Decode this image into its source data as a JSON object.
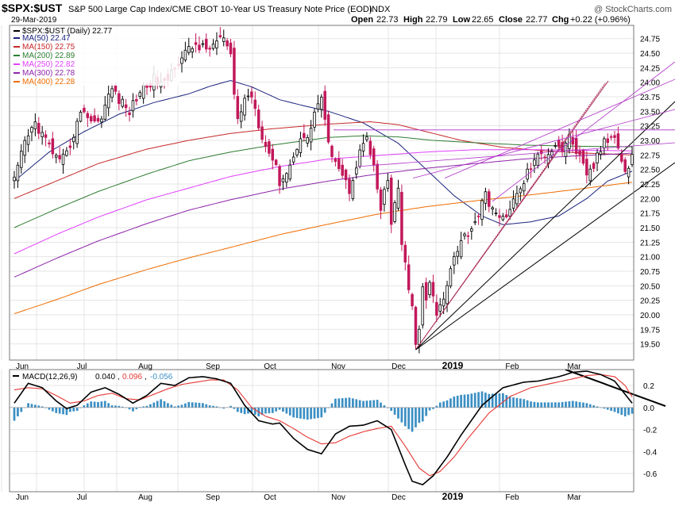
{
  "header": {
    "symbol": "$SPX:$UST",
    "description": "S&P 500 Large Cap Index/CME CBOT 10-Year US Treasury Note Price (EOD)",
    "exchange": "INDX",
    "watermark": "@ StockCharts.com",
    "date": "29-Mar-2019",
    "open_label": "Open",
    "open": "22.73",
    "high_label": "High",
    "high": "22.79",
    "low_label": "Low",
    "low": "22.65",
    "close_label": "Close",
    "close": "22.77",
    "chg_label": "Chg",
    "chg": "+0.22 (+0.96%)"
  },
  "legend": {
    "main": {
      "label": "$SPX:$UST (Daily) 22.77",
      "color": "#000000"
    },
    "ma": [
      {
        "label": "MA(50) 22.47",
        "color": "#1a237e"
      },
      {
        "label": "MA(150) 22.75",
        "color": "#c62828"
      },
      {
        "label": "MA(200) 22.89",
        "color": "#2e7d32"
      },
      {
        "label": "MA(250) 22.82",
        "color": "#e040fb"
      },
      {
        "label": "MA(300) 22.78",
        "color": "#8e24aa"
      },
      {
        "label": "MA(400) 22.28",
        "color": "#ef6c00"
      }
    ]
  },
  "macd_legend": {
    "prefix": "MACD(12,26,9)",
    "macd": "0.040",
    "signal": "0.096",
    "hist": "-0.056"
  },
  "colors": {
    "up": "#000000",
    "down": "#c2185b",
    "hist": "#3b8fc4",
    "macd_line": "#000000",
    "signal_line": "#e53935",
    "grid": "#e4e4e4",
    "trend": "#000000",
    "fan": "#b030c8",
    "mag": "#aa2a5a"
  },
  "chart_data": [
    {
      "type": "candlestick",
      "title": "$SPX:$UST S&P 500 Large Cap Index/CME CBOT 10-Year US Treasury Note Price (EOD)",
      "x_labels": [
        "Jun",
        "Jul",
        "Aug",
        "Sep",
        "Oct",
        "Nov",
        "Dec",
        "2019",
        "Feb",
        "Mar"
      ],
      "y_ticks": [
        "19.50",
        "19.75",
        "20.00",
        "20.25",
        "20.50",
        "20.75",
        "21.00",
        "21.25",
        "21.50",
        "21.75",
        "22.00",
        "22.25",
        "22.50",
        "22.75",
        "23.00",
        "23.25",
        "23.50",
        "23.75",
        "24.00",
        "24.25",
        "24.50",
        "24.75"
      ],
      "ylim": [
        19.25,
        24.95
      ],
      "keypoints_close": [
        [
          0,
          22.3
        ],
        [
          3,
          22.95
        ],
        [
          6,
          23.3
        ],
        [
          8,
          23.1
        ],
        [
          10,
          22.9
        ],
        [
          13,
          22.6
        ],
        [
          15,
          22.75
        ],
        [
          18,
          23.3
        ],
        [
          20,
          23.55
        ],
        [
          21,
          23.4
        ],
        [
          24,
          23.3
        ],
        [
          26,
          23.6
        ],
        [
          28,
          23.9
        ],
        [
          30,
          23.7
        ],
        [
          33,
          23.5
        ],
        [
          36,
          23.85
        ],
        [
          40,
          24.05
        ],
        [
          43,
          23.95
        ],
        [
          46,
          24.3
        ],
        [
          49,
          24.5
        ],
        [
          52,
          24.65
        ],
        [
          55,
          24.55
        ],
        [
          58,
          24.7
        ],
        [
          60,
          24.75
        ],
        [
          62,
          24.4
        ],
        [
          63,
          23.8
        ],
        [
          64,
          23.35
        ],
        [
          66,
          23.7
        ],
        [
          68,
          23.8
        ],
        [
          70,
          23.3
        ],
        [
          72,
          22.9
        ],
        [
          74,
          22.7
        ],
        [
          76,
          22.3
        ],
        [
          78,
          22.45
        ],
        [
          80,
          22.7
        ],
        [
          82,
          23.1
        ],
        [
          84,
          23.0
        ],
        [
          86,
          23.5
        ],
        [
          88,
          23.75
        ],
        [
          89,
          23.3
        ],
        [
          90,
          22.9
        ],
        [
          92,
          22.7
        ],
        [
          94,
          22.4
        ],
        [
          96,
          22.15
        ],
        [
          98,
          22.6
        ],
        [
          100,
          22.95
        ],
        [
          101,
          23.05
        ],
        [
          102,
          22.7
        ],
        [
          103,
          22.5
        ],
        [
          105,
          21.8
        ],
        [
          106,
          22.1
        ],
        [
          107,
          22.3
        ],
        [
          108,
          21.6
        ],
        [
          109,
          21.9
        ],
        [
          110,
          22.1
        ],
        [
          111,
          21.2
        ],
        [
          113,
          20.5
        ],
        [
          114,
          20.1
        ],
        [
          115,
          19.45
        ],
        [
          116,
          19.75
        ],
        [
          117,
          20.5
        ],
        [
          118,
          20.2
        ],
        [
          119,
          20.55
        ],
        [
          121,
          20.0
        ],
        [
          123,
          20.3
        ],
        [
          125,
          20.85
        ],
        [
          127,
          21.15
        ],
        [
          129,
          21.35
        ],
        [
          131,
          21.5
        ],
        [
          133,
          21.75
        ],
        [
          135,
          22.05
        ],
        [
          137,
          21.85
        ],
        [
          139,
          21.6
        ],
        [
          141,
          21.75
        ],
        [
          143,
          21.95
        ],
        [
          145,
          22.15
        ],
        [
          147,
          22.45
        ],
        [
          149,
          22.65
        ],
        [
          151,
          22.75
        ],
        [
          153,
          22.8
        ],
        [
          155,
          22.95
        ],
        [
          157,
          22.85
        ],
        [
          159,
          23.05
        ],
        [
          160,
          22.95
        ],
        [
          162,
          22.7
        ],
        [
          164,
          22.35
        ],
        [
          166,
          22.55
        ],
        [
          167,
          22.75
        ],
        [
          169,
          22.95
        ],
        [
          171,
          23.05
        ],
        [
          172,
          23.1
        ],
        [
          173,
          22.95
        ],
        [
          174,
          22.7
        ],
        [
          175,
          22.45
        ],
        [
          176,
          22.55
        ],
        [
          177,
          22.77
        ]
      ],
      "ma_keypoints": [
        {
          "name": "MA(50)",
          "color": "#1a237e",
          "points": [
            [
              0,
              22.3
            ],
            [
              10,
              22.8
            ],
            [
              20,
              23.15
            ],
            [
              30,
              23.45
            ],
            [
              40,
              23.65
            ],
            [
              50,
              23.8
            ],
            [
              56,
              23.93
            ],
            [
              62,
              24.03
            ],
            [
              68,
              23.92
            ],
            [
              76,
              23.7
            ],
            [
              84,
              23.58
            ],
            [
              90,
              23.5
            ],
            [
              100,
              23.3
            ],
            [
              110,
              22.95
            ],
            [
              118,
              22.5
            ],
            [
              126,
              22.05
            ],
            [
              134,
              21.7
            ],
            [
              140,
              21.55
            ],
            [
              148,
              21.6
            ],
            [
              156,
              21.7
            ],
            [
              164,
              22.0
            ],
            [
              170,
              22.3
            ],
            [
              177,
              22.47
            ]
          ]
        },
        {
          "name": "MA(150)",
          "color": "#c62828",
          "points": [
            [
              0,
              22.0
            ],
            [
              12,
              22.3
            ],
            [
              24,
              22.6
            ],
            [
              38,
              22.85
            ],
            [
              50,
              23.0
            ],
            [
              62,
              23.12
            ],
            [
              74,
              23.2
            ],
            [
              90,
              23.28
            ],
            [
              102,
              23.32
            ],
            [
              110,
              23.27
            ],
            [
              118,
              23.15
            ],
            [
              128,
              23.0
            ],
            [
              140,
              22.88
            ],
            [
              152,
              22.82
            ],
            [
              164,
              22.78
            ],
            [
              177,
              22.75
            ]
          ]
        },
        {
          "name": "MA(200)",
          "color": "#2e7d32",
          "points": [
            [
              0,
              21.5
            ],
            [
              12,
              21.82
            ],
            [
              24,
              22.12
            ],
            [
              38,
              22.42
            ],
            [
              50,
              22.65
            ],
            [
              62,
              22.8
            ],
            [
              74,
              22.92
            ],
            [
              90,
              23.05
            ],
            [
              100,
              23.08
            ],
            [
              110,
              23.06
            ],
            [
              120,
              23.0
            ],
            [
              132,
              22.96
            ],
            [
              146,
              22.92
            ],
            [
              160,
              22.9
            ],
            [
              177,
              22.89
            ]
          ]
        },
        {
          "name": "MA(250)",
          "color": "#e040fb",
          "points": [
            [
              0,
              21.05
            ],
            [
              12,
              21.38
            ],
            [
              24,
              21.68
            ],
            [
              38,
              21.98
            ],
            [
              50,
              22.18
            ],
            [
              62,
              22.38
            ],
            [
              76,
              22.55
            ],
            [
              90,
              22.68
            ],
            [
              104,
              22.74
            ],
            [
              118,
              22.8
            ],
            [
              132,
              22.84
            ],
            [
              148,
              22.84
            ],
            [
              164,
              22.83
            ],
            [
              177,
              22.82
            ]
          ]
        },
        {
          "name": "MA(300)",
          "color": "#8e24aa",
          "points": [
            [
              0,
              20.65
            ],
            [
              12,
              20.97
            ],
            [
              24,
              21.27
            ],
            [
              38,
              21.57
            ],
            [
              50,
              21.8
            ],
            [
              62,
              21.98
            ],
            [
              76,
              22.16
            ],
            [
              90,
              22.3
            ],
            [
              104,
              22.42
            ],
            [
              118,
              22.52
            ],
            [
              132,
              22.6
            ],
            [
              146,
              22.68
            ],
            [
              160,
              22.73
            ],
            [
              177,
              22.78
            ]
          ]
        },
        {
          "name": "MA(400)",
          "color": "#ef6c00",
          "points": [
            [
              0,
              20.02
            ],
            [
              12,
              20.26
            ],
            [
              24,
              20.52
            ],
            [
              38,
              20.78
            ],
            [
              50,
              20.98
            ],
            [
              62,
              21.16
            ],
            [
              76,
              21.38
            ],
            [
              90,
              21.56
            ],
            [
              104,
              21.73
            ],
            [
              118,
              21.86
            ],
            [
              132,
              21.96
            ],
            [
              146,
              22.05
            ],
            [
              160,
              22.15
            ],
            [
              177,
              22.28
            ]
          ]
        }
      ]
    },
    {
      "type": "macd",
      "title": "MACD(12,26,9) 0.040, 0.096, -0.056",
      "x_labels": [
        "Jun",
        "Jul",
        "Aug",
        "Sep",
        "Oct",
        "Nov",
        "Dec",
        "2019",
        "Feb",
        "Mar"
      ],
      "y_ticks": [
        "0.2",
        "0.0",
        "-0.2",
        "-0.4",
        "-0.6"
      ],
      "ylim": [
        -0.75,
        0.33
      ],
      "macd_keypoints": [
        [
          0,
          0.04
        ],
        [
          4,
          0.22
        ],
        [
          8,
          0.18
        ],
        [
          12,
          0.06
        ],
        [
          15,
          -0.01
        ],
        [
          18,
          0.02
        ],
        [
          22,
          0.14
        ],
        [
          26,
          0.18
        ],
        [
          30,
          0.12
        ],
        [
          34,
          0.04
        ],
        [
          38,
          0.11
        ],
        [
          42,
          0.22
        ],
        [
          46,
          0.2
        ],
        [
          50,
          0.27
        ],
        [
          54,
          0.28
        ],
        [
          58,
          0.26
        ],
        [
          62,
          0.22
        ],
        [
          66,
          0.02
        ],
        [
          70,
          -0.12
        ],
        [
          74,
          -0.15
        ],
        [
          76,
          -0.14
        ],
        [
          80,
          -0.28
        ],
        [
          84,
          -0.38
        ],
        [
          88,
          -0.42
        ],
        [
          92,
          -0.24
        ],
        [
          96,
          -0.17
        ],
        [
          100,
          -0.16
        ],
        [
          104,
          -0.12
        ],
        [
          108,
          -0.2
        ],
        [
          112,
          -0.52
        ],
        [
          114,
          -0.67
        ],
        [
          117,
          -0.7
        ],
        [
          120,
          -0.62
        ],
        [
          124,
          -0.45
        ],
        [
          128,
          -0.25
        ],
        [
          134,
          0.02
        ],
        [
          140,
          0.18
        ],
        [
          146,
          0.23
        ],
        [
          150,
          0.24
        ],
        [
          156,
          0.28
        ],
        [
          160,
          0.32
        ],
        [
          164,
          0.33
        ],
        [
          168,
          0.3
        ],
        [
          172,
          0.24
        ],
        [
          175,
          0.12
        ],
        [
          177,
          0.04
        ]
      ],
      "signal_keypoints": [
        [
          0,
          0.16
        ],
        [
          4,
          0.18
        ],
        [
          8,
          0.17
        ],
        [
          12,
          0.11
        ],
        [
          16,
          0.04
        ],
        [
          20,
          0.06
        ],
        [
          24,
          0.11
        ],
        [
          28,
          0.13
        ],
        [
          32,
          0.08
        ],
        [
          36,
          0.07
        ],
        [
          40,
          0.12
        ],
        [
          44,
          0.17
        ],
        [
          48,
          0.21
        ],
        [
          52,
          0.23
        ],
        [
          56,
          0.25
        ],
        [
          60,
          0.25
        ],
        [
          64,
          0.16
        ],
        [
          68,
          0.0
        ],
        [
          72,
          -0.08
        ],
        [
          76,
          -0.12
        ],
        [
          80,
          -0.19
        ],
        [
          84,
          -0.27
        ],
        [
          88,
          -0.33
        ],
        [
          92,
          -0.32
        ],
        [
          96,
          -0.26
        ],
        [
          100,
          -0.22
        ],
        [
          104,
          -0.19
        ],
        [
          108,
          -0.17
        ],
        [
          112,
          -0.35
        ],
        [
          116,
          -0.55
        ],
        [
          119,
          -0.62
        ],
        [
          122,
          -0.58
        ],
        [
          126,
          -0.45
        ],
        [
          130,
          -0.28
        ],
        [
          136,
          -0.05
        ],
        [
          142,
          0.1
        ],
        [
          148,
          0.18
        ],
        [
          154,
          0.22
        ],
        [
          160,
          0.26
        ],
        [
          164,
          0.29
        ],
        [
          168,
          0.3
        ],
        [
          172,
          0.28
        ],
        [
          175,
          0.2
        ],
        [
          177,
          0.096
        ]
      ]
    }
  ]
}
